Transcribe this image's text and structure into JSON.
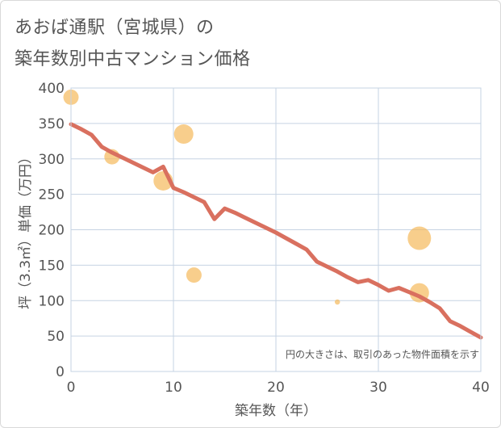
{
  "title_line1": "あおば通駅（宮城県）の",
  "title_line2": "築年数別中古マンション価格",
  "colors": {
    "trend_line": "#d9705f",
    "bubble": "#f5b95b",
    "grid": "#c6d3e3",
    "frame": "#d9d9d9"
  },
  "chart_data": {
    "type": "scatter",
    "title": "あおば通駅（宮城県）の築年数別中古マンション価格",
    "xlabel": "築年数（年）",
    "ylabel": "坪（3.3㎡）単価（万円）",
    "xlim": [
      0,
      40
    ],
    "ylim": [
      0,
      400
    ],
    "x_ticks": [
      0,
      10,
      20,
      30,
      40
    ],
    "y_ticks": [
      0,
      50,
      100,
      150,
      200,
      250,
      300,
      350,
      400
    ],
    "grid": true,
    "note": "円の大きさは、取引のあった物件面積を示す",
    "bubbles": [
      {
        "x": 0,
        "y": 387,
        "size": 3
      },
      {
        "x": 4,
        "y": 303,
        "size": 3
      },
      {
        "x": 9,
        "y": 269,
        "size": 4
      },
      {
        "x": 11,
        "y": 335,
        "size": 4
      },
      {
        "x": 12,
        "y": 136,
        "size": 3
      },
      {
        "x": 26,
        "y": 98,
        "size": 0.5
      },
      {
        "x": 34,
        "y": 188,
        "size": 5
      },
      {
        "x": 34,
        "y": 111,
        "size": 4
      }
    ],
    "trend_line": {
      "x": [
        0,
        1,
        2,
        3,
        4,
        5,
        6,
        7,
        8,
        9,
        10,
        11,
        12,
        13,
        14,
        15,
        16,
        17,
        18,
        19,
        20,
        21,
        22,
        23,
        24,
        25,
        26,
        27,
        28,
        29,
        30,
        31,
        32,
        33,
        34,
        35,
        36,
        37,
        38,
        39,
        40
      ],
      "y": [
        349,
        342,
        334,
        317,
        309,
        302,
        295,
        288,
        281,
        289,
        259,
        253,
        246,
        239,
        215,
        230,
        224,
        217,
        210,
        203,
        196,
        188,
        180,
        172,
        155,
        148,
        141,
        133,
        126,
        129,
        122,
        114,
        118,
        112,
        106,
        98,
        89,
        71,
        64,
        56,
        48
      ]
    }
  }
}
